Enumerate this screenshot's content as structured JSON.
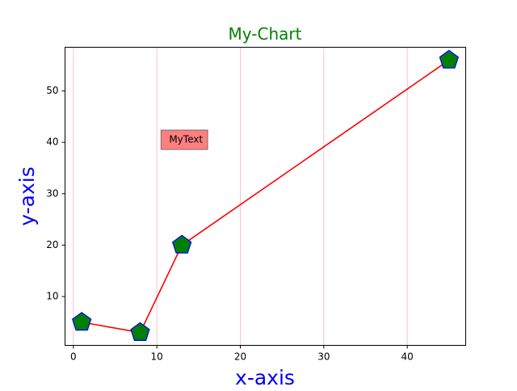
{
  "chart_data": {
    "type": "line",
    "title": "My-Chart",
    "xlabel": "x-axis",
    "ylabel": "y-axis",
    "xlim": [
      -1,
      47
    ],
    "ylim": [
      0.5,
      58.5
    ],
    "x_ticks": [
      0,
      10,
      20,
      30,
      40
    ],
    "y_ticks": [
      10,
      20,
      30,
      40,
      50
    ],
    "grid": "vertical",
    "series": [
      {
        "values": [
          {
            "x": 1,
            "y": 5
          },
          {
            "x": 8,
            "y": 3
          },
          {
            "x": 13,
            "y": 20
          },
          {
            "x": 45,
            "y": 56
          }
        ],
        "line_color": "#ff0000",
        "marker": "pentagon",
        "marker_fill": "#008000",
        "marker_edge": "#0000ff"
      }
    ],
    "annotation": {
      "text": "MyText",
      "x": 10.5,
      "y": 40.5,
      "box_color": "#ff7f7f"
    },
    "colors": {
      "title": "#008000",
      "axis_label": "#0000ff",
      "grid": "#ffc0cb",
      "axes": "#000000"
    }
  }
}
